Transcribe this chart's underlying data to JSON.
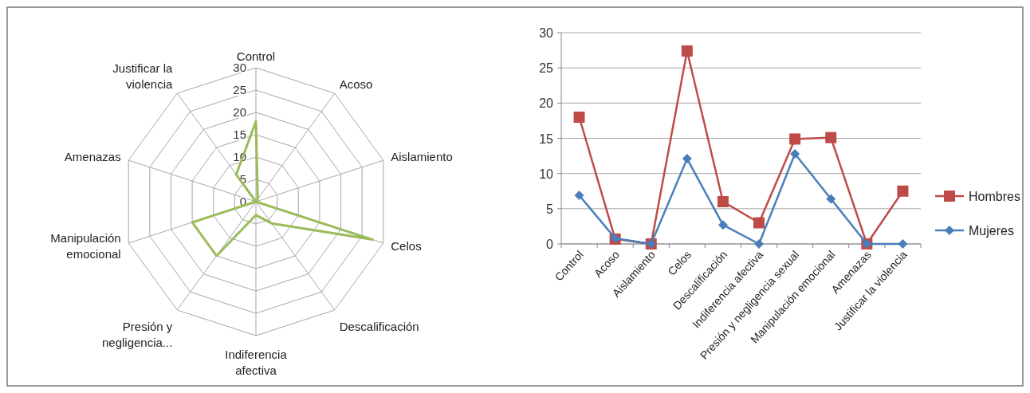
{
  "chart_data": [
    {
      "type": "radar",
      "categories": [
        "Control",
        "Acoso",
        "Aislamiento",
        "Celos",
        "Descalificación",
        "Indiferencia\nafectiva",
        "Presión y\nnegligencia...",
        "Manipulación\nemocional",
        "Amenazas",
        "Justificar la\nviolencia"
      ],
      "series": [
        {
          "color": "#9bbb59",
          "values": [
            18,
            0.7,
            0,
            27.5,
            6,
            3,
            15,
            15,
            0,
            7.5
          ]
        }
      ],
      "ylim": [
        0,
        30
      ],
      "yticks": [
        0,
        5,
        10,
        15,
        20,
        25,
        30
      ],
      "grid": true
    },
    {
      "type": "line",
      "categories": [
        "Control",
        "Acoso",
        "Aislamiento",
        "Celos",
        "Descalificación",
        "Indiferencia afectiva",
        "Presión y negligencia sexual",
        "Manipulación emocional",
        "Amenazas",
        "Justificar la violencia"
      ],
      "series": [
        {
          "name": "Hombres",
          "color": "#be4b48",
          "marker": "square",
          "values": [
            18,
            0.7,
            0,
            27.4,
            6,
            3,
            14.9,
            15.1,
            0,
            7.5
          ]
        },
        {
          "name": "Mujeres",
          "color": "#4a7ebb",
          "marker": "diamond",
          "values": [
            6.9,
            0.8,
            0,
            12.1,
            2.7,
            0,
            12.8,
            6.4,
            0,
            0
          ]
        }
      ],
      "ylim": [
        0,
        30
      ],
      "yticks": [
        0,
        5,
        10,
        15,
        20,
        25,
        30
      ],
      "grid": "y",
      "legend": "right"
    }
  ]
}
